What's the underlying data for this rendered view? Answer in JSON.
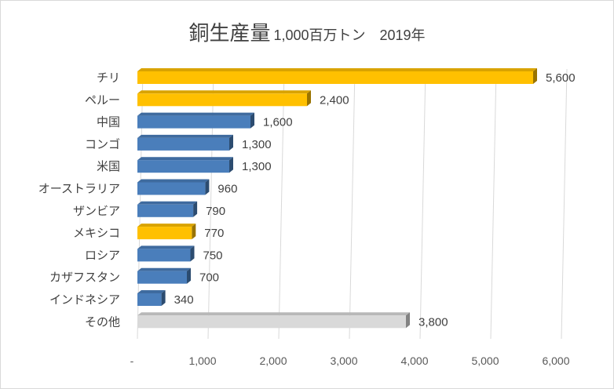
{
  "chart_data": {
    "type": "bar",
    "orientation": "horizontal",
    "title": "銅生産量",
    "subtitle": "1,000百万トン　2019年",
    "categories": [
      "チリ",
      "ペルー",
      "中国",
      "コンゴ",
      "米国",
      "オーストラリア",
      "ザンビア",
      "メキシコ",
      "ロシア",
      "カザフスタン",
      "インドネシア",
      "その他"
    ],
    "values": [
      5600,
      2400,
      1600,
      1300,
      1300,
      960,
      790,
      770,
      750,
      700,
      340,
      3800
    ],
    "value_labels": [
      "5,600",
      "2,400",
      "1,600",
      "1,300",
      "1,300",
      "960",
      "790",
      "770",
      "750",
      "700",
      "340",
      "3,800"
    ],
    "bar_colors": [
      "#ffc000",
      "#ffc000",
      "#4a7ebb",
      "#4a7ebb",
      "#4a7ebb",
      "#4a7ebb",
      "#4a7ebb",
      "#ffc000",
      "#4a7ebb",
      "#4a7ebb",
      "#4a7ebb",
      "#d9d9d9"
    ],
    "xlim": [
      0,
      6000
    ],
    "xticks": [
      0,
      1000,
      2000,
      3000,
      4000,
      5000,
      6000
    ],
    "xtick_labels": [
      "-",
      "1,000",
      "2,000",
      "3,000",
      "4,000",
      "5,000",
      "6,000"
    ],
    "grid": true,
    "legend": "none",
    "style": "3d"
  }
}
